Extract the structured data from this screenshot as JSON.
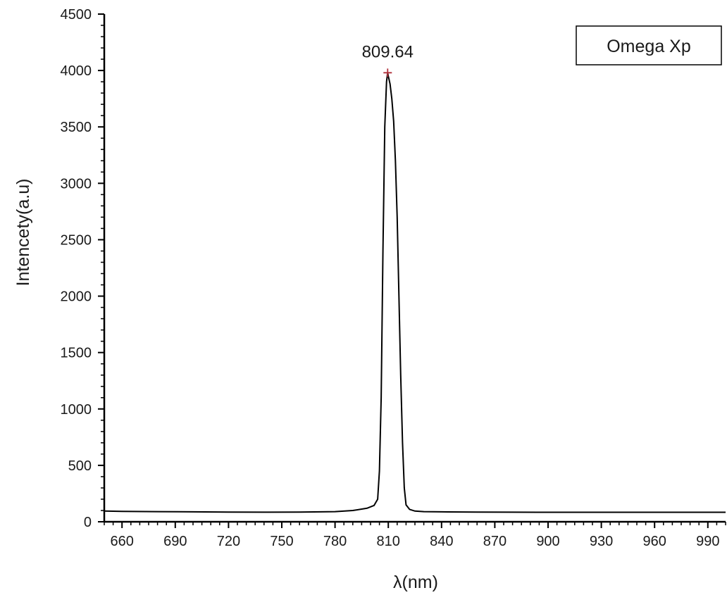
{
  "chart_data": {
    "type": "line",
    "title": "",
    "xlabel": "λ(nm)",
    "ylabel": "Intencety(a.u)",
    "xlim": [
      650,
      1000
    ],
    "ylim": [
      0,
      4500
    ],
    "x_ticks": [
      660,
      690,
      720,
      750,
      780,
      810,
      840,
      870,
      900,
      930,
      960,
      990
    ],
    "y_ticks": [
      0,
      500,
      1000,
      1500,
      2000,
      2500,
      3000,
      3500,
      4000,
      4500
    ],
    "grid": false,
    "legend_position": "top-right",
    "series": [
      {
        "name": "Omega Xp",
        "color": "#000000",
        "x": [
          650,
          660,
          680,
          700,
          720,
          740,
          760,
          780,
          790,
          798,
          802,
          804,
          805,
          806,
          807,
          808,
          809,
          809.64,
          810,
          811,
          812,
          813,
          814,
          815,
          816,
          817,
          818,
          819,
          820,
          822,
          825,
          830,
          840,
          860,
          880,
          900,
          920,
          940,
          960,
          980,
          1000
        ],
        "y": [
          95,
          92,
          90,
          88,
          86,
          85,
          86,
          90,
          100,
          120,
          145,
          200,
          450,
          1100,
          2400,
          3500,
          3900,
          3980,
          3950,
          3880,
          3750,
          3550,
          3200,
          2700,
          2000,
          1300,
          700,
          300,
          150,
          110,
          95,
          90,
          88,
          86,
          85,
          84,
          84,
          84,
          84,
          84,
          84
        ]
      }
    ],
    "annotations": [
      {
        "text": "809.64",
        "x": 809.64,
        "y": 3980,
        "marker": "+",
        "marker_color": "#b0303a"
      }
    ]
  }
}
